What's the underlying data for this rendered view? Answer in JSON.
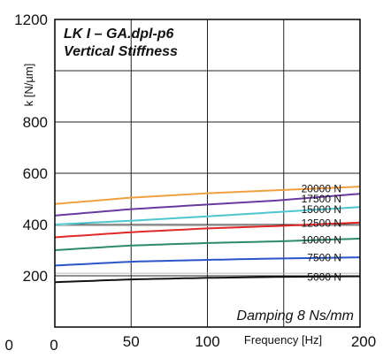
{
  "chart_data": {
    "type": "line",
    "title_lines": [
      "LK I – GA.dpl-p6",
      "Vertical Stiffness"
    ],
    "xlabel": "Frequency [Hz]",
    "ylabel": "k [N/µm]",
    "annotation": "Damping 8 Ns/mm",
    "xlim": [
      0,
      200
    ],
    "ylim": [
      0,
      1200
    ],
    "x_ticks": [
      {
        "value": 50,
        "label": "50"
      },
      {
        "value": 100,
        "label": "100"
      },
      {
        "value": 200,
        "label": "200"
      }
    ],
    "x_origin_label": "0",
    "y_origin_label": "0",
    "y_ticks": [
      {
        "value": 200,
        "label": "200"
      },
      {
        "value": 400,
        "label": "400"
      },
      {
        "value": 600,
        "label": "600"
      },
      {
        "value": 800,
        "label": "800"
      },
      {
        "value": 1200,
        "label": "1200"
      }
    ],
    "grid": true,
    "x": [
      0,
      50,
      100,
      150,
      200
    ],
    "series": [
      {
        "name": "20000 N",
        "color": "#f0a040",
        "values": [
          480,
          505,
          522,
          535,
          548
        ],
        "label_y": 540
      },
      {
        "name": "17500 N",
        "color": "#6a3aa0",
        "values": [
          435,
          460,
          478,
          495,
          520
        ],
        "label_y": 500
      },
      {
        "name": "15000 N",
        "color": "#4ec6cf",
        "values": [
          400,
          415,
          432,
          450,
          468
        ],
        "label_y": 458
      },
      {
        "name": "12500 N",
        "color": "#e02828",
        "values": [
          350,
          370,
          385,
          395,
          408
        ],
        "label_y": 406
      },
      {
        "name": "10000 N",
        "color": "#2e8b6a",
        "values": [
          300,
          318,
          328,
          335,
          345
        ],
        "label_y": 340
      },
      {
        "name": "7500 N",
        "color": "#2b55c8",
        "values": [
          240,
          255,
          262,
          268,
          272
        ],
        "label_y": 270
      },
      {
        "name": "5000 N",
        "color": "#111111",
        "values": [
          175,
          186,
          192,
          196,
          198
        ],
        "label_y": 195
      }
    ]
  }
}
